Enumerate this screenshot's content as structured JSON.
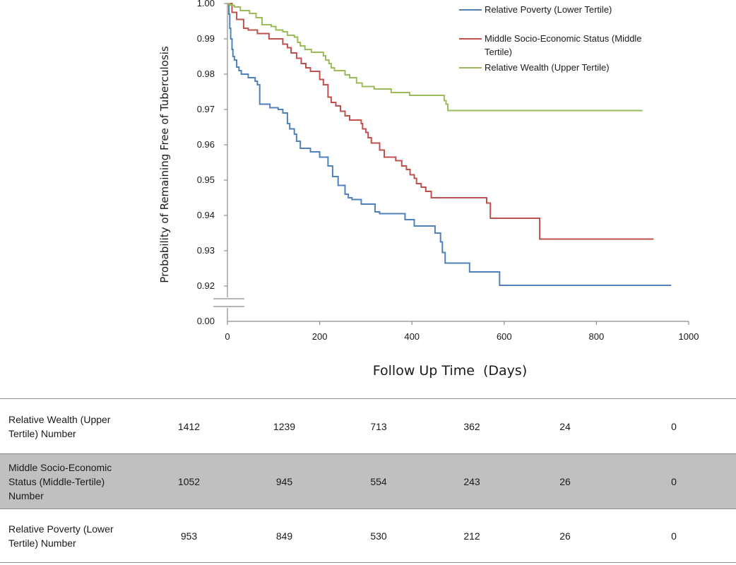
{
  "chart_data": {
    "type": "line",
    "subtype": "kaplan-meier step",
    "xlabel": "Follow Up Time  (Days)",
    "ylabel": "Probability of Remaining Free of Tuberculosis",
    "xlim": [
      0,
      1000
    ],
    "x_ticks": [
      "0",
      "200",
      "400",
      "600",
      "800",
      "1000"
    ],
    "y_ticks": [
      "1.00",
      "0.99",
      "0.98",
      "0.97",
      "0.96",
      "0.95",
      "0.94",
      "0.93",
      "0.92"
    ],
    "y_break_tick": "0.00",
    "ylim_upper_segment": [
      0.92,
      1.0
    ],
    "axis_break": true,
    "grid": false,
    "legend_position": "top-right",
    "series": [
      {
        "name": "Relative Poverty (Lower Tertile)",
        "color": "#4f81bd",
        "points": [
          [
            0,
            1.0
          ],
          [
            3,
            0.997
          ],
          [
            5,
            0.993
          ],
          [
            7,
            0.99
          ],
          [
            10,
            0.987
          ],
          [
            12,
            0.985
          ],
          [
            15,
            0.984
          ],
          [
            20,
            0.982
          ],
          [
            25,
            0.981
          ],
          [
            30,
            0.98
          ],
          [
            45,
            0.979
          ],
          [
            60,
            0.978
          ],
          [
            65,
            0.977
          ],
          [
            70,
            0.9715
          ],
          [
            80,
            0.9715
          ],
          [
            92,
            0.9705
          ],
          [
            110,
            0.97
          ],
          [
            120,
            0.969
          ],
          [
            130,
            0.966
          ],
          [
            135,
            0.9645
          ],
          [
            145,
            0.963
          ],
          [
            150,
            0.961
          ],
          [
            158,
            0.959
          ],
          [
            180,
            0.958
          ],
          [
            200,
            0.9565
          ],
          [
            218,
            0.954
          ],
          [
            228,
            0.951
          ],
          [
            240,
            0.9485
          ],
          [
            255,
            0.946
          ],
          [
            262,
            0.945
          ],
          [
            270,
            0.9445
          ],
          [
            290,
            0.9432
          ],
          [
            320,
            0.941
          ],
          [
            330,
            0.9405
          ],
          [
            385,
            0.9388
          ],
          [
            405,
            0.937
          ],
          [
            450,
            0.935
          ],
          [
            462,
            0.9325
          ],
          [
            466,
            0.9295
          ],
          [
            472,
            0.9265
          ],
          [
            525,
            0.924
          ],
          [
            590,
            0.9202
          ],
          [
            962,
            0.9202
          ]
        ]
      },
      {
        "name": "Middle Socio-Economic Status (Middle Tertile)",
        "color": "#c0504d",
        "points": [
          [
            0,
            1.0
          ],
          [
            10,
            0.9975
          ],
          [
            20,
            0.9955
          ],
          [
            35,
            0.993
          ],
          [
            45,
            0.9925
          ],
          [
            65,
            0.9915
          ],
          [
            90,
            0.99
          ],
          [
            120,
            0.9885
          ],
          [
            130,
            0.9875
          ],
          [
            138,
            0.986
          ],
          [
            150,
            0.9845
          ],
          [
            160,
            0.983
          ],
          [
            170,
            0.9818
          ],
          [
            180,
            0.9808
          ],
          [
            200,
            0.9785
          ],
          [
            208,
            0.977
          ],
          [
            218,
            0.9735
          ],
          [
            225,
            0.972
          ],
          [
            235,
            0.971
          ],
          [
            245,
            0.9695
          ],
          [
            255,
            0.9682
          ],
          [
            265,
            0.967
          ],
          [
            290,
            0.966
          ],
          [
            293,
            0.9645
          ],
          [
            300,
            0.9635
          ],
          [
            305,
            0.962
          ],
          [
            312,
            0.9605
          ],
          [
            330,
            0.9585
          ],
          [
            340,
            0.9565
          ],
          [
            365,
            0.9555
          ],
          [
            378,
            0.954
          ],
          [
            388,
            0.953
          ],
          [
            396,
            0.9515
          ],
          [
            405,
            0.9505
          ],
          [
            410,
            0.949
          ],
          [
            420,
            0.948
          ],
          [
            430,
            0.9468
          ],
          [
            442,
            0.945
          ],
          [
            562,
            0.9435
          ],
          [
            570,
            0.9392
          ],
          [
            677,
            0.9333
          ],
          [
            924,
            0.9333
          ]
        ]
      },
      {
        "name": "Relative Wealth (Upper Tertile)",
        "color": "#9bbb59",
        "points": [
          [
            0,
            1.0
          ],
          [
            5,
            0.9995
          ],
          [
            15,
            0.999
          ],
          [
            28,
            0.998
          ],
          [
            48,
            0.9972
          ],
          [
            62,
            0.996
          ],
          [
            75,
            0.994
          ],
          [
            95,
            0.9935
          ],
          [
            105,
            0.9925
          ],
          [
            120,
            0.992
          ],
          [
            130,
            0.991
          ],
          [
            145,
            0.9905
          ],
          [
            152,
            0.989
          ],
          [
            158,
            0.988
          ],
          [
            168,
            0.987
          ],
          [
            182,
            0.9862
          ],
          [
            208,
            0.9852
          ],
          [
            213,
            0.984
          ],
          [
            220,
            0.983
          ],
          [
            225,
            0.9818
          ],
          [
            232,
            0.981
          ],
          [
            255,
            0.9798
          ],
          [
            265,
            0.979
          ],
          [
            280,
            0.9775
          ],
          [
            292,
            0.9765
          ],
          [
            318,
            0.9758
          ],
          [
            355,
            0.9748
          ],
          [
            395,
            0.974
          ],
          [
            470,
            0.9725
          ],
          [
            474,
            0.9715
          ],
          [
            478,
            0.9697
          ],
          [
            900,
            0.9697
          ]
        ]
      }
    ]
  },
  "table": {
    "rows": [
      {
        "label": "Relative Wealth (Upper Tertile) Number",
        "values": [
          "1412",
          "1239",
          "713",
          "362",
          "24",
          "0"
        ]
      },
      {
        "label": "Middle Socio-Economic Status (Middle-Tertile) Number",
        "values": [
          "1052",
          "945",
          "554",
          "243",
          "26",
          "0"
        ]
      },
      {
        "label": "Relative Poverty (Lower Tertile) Number",
        "values": [
          "953",
          "849",
          "530",
          "212",
          "26",
          "0"
        ]
      }
    ]
  }
}
